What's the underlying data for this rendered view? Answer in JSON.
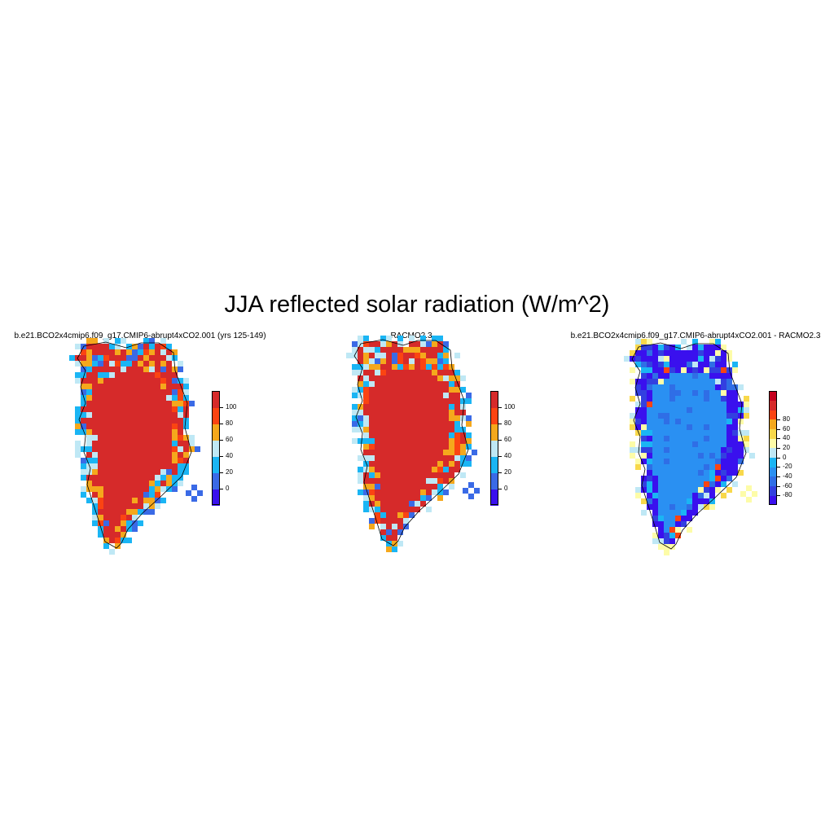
{
  "title": "JJA reflected solar radiation (W/m^2)",
  "colors": {
    "abs_scale": [
      "#3a10ee",
      "#3a6ae6",
      "#1ab5f4",
      "#bfe8f5",
      "#f5a81c",
      "#fb4412",
      "#d62a2a"
    ],
    "diff_scale": [
      "#3a10ee",
      "#3340e0",
      "#2f6ee6",
      "#2a90f2",
      "#1ab5f4",
      "#bfe8f5",
      "#fdfca8",
      "#f8d84a",
      "#f5a81c",
      "#fb4412",
      "#d62a2a",
      "#c5001e"
    ],
    "coastline": "#000000"
  },
  "panels": [
    {
      "id": "a",
      "title": "b.e21.BCO2x4cmip6.f09_g17.CMIP6-abrupt4xCO2.001 (yrs 125-149)",
      "interior_level": "> 100",
      "colorbar": {
        "levels": [
          -10,
          0,
          20,
          40,
          60,
          80,
          100
        ],
        "labels": [
          "0",
          "20",
          "40",
          "60",
          "80",
          "100"
        ]
      }
    },
    {
      "id": "b",
      "title": "RACMO2.3",
      "interior_level": "> 100",
      "colorbar": {
        "levels": [
          -10,
          0,
          20,
          40,
          60,
          80,
          100
        ],
        "labels": [
          "0",
          "20",
          "40",
          "60",
          "80",
          "100"
        ]
      }
    },
    {
      "id": "c",
      "title": "b.e21.BCO2x4cmip6.f09_g17.CMIP6-abrupt4xCO2.001 - RACMO2.3",
      "interior_level": "-40 to -20",
      "colorbar": {
        "levels": [
          -80,
          -60,
          -40,
          -20,
          0,
          20,
          40,
          60,
          80
        ],
        "labels": [
          "-80",
          "-60",
          "-40",
          "-20",
          "0",
          "20",
          "40",
          "60",
          "80"
        ]
      }
    }
  ]
}
